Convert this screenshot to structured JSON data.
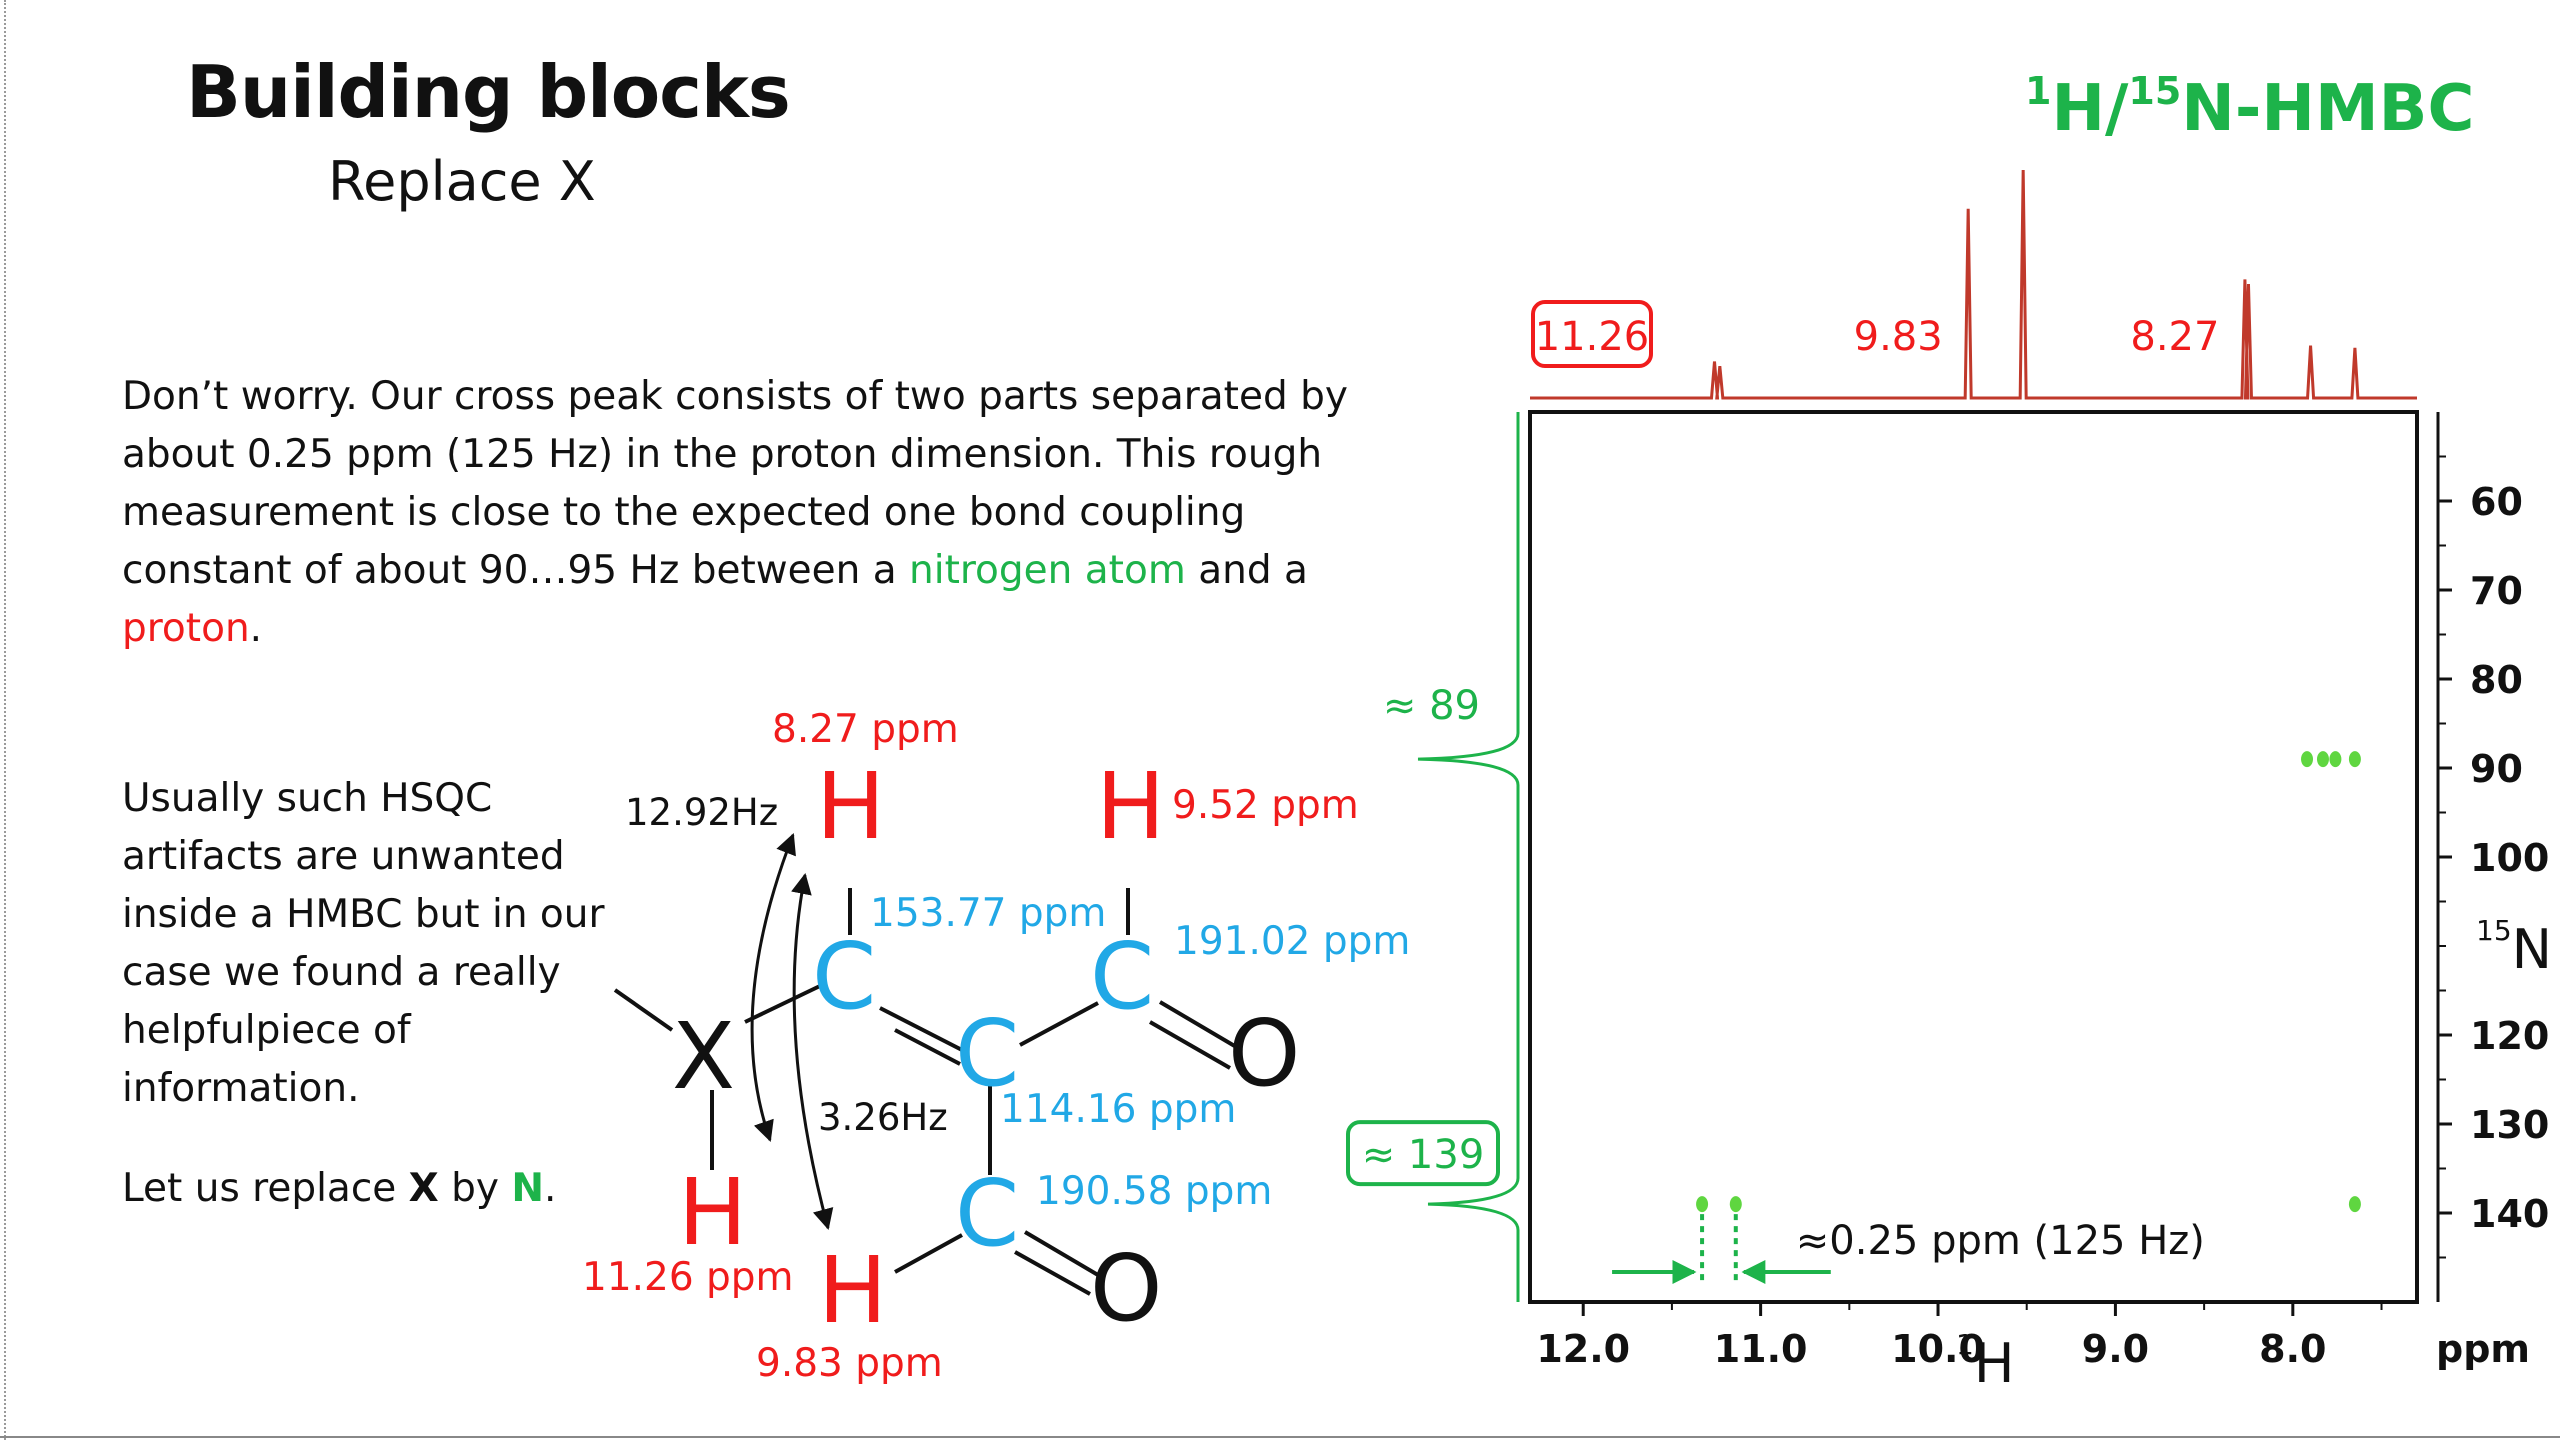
{
  "slide": {
    "title": "Building blocks",
    "subtitle": "Replace X",
    "paragraph1": {
      "part1": "Don’t worry. Our cross peak consists of two parts separated by about 0.25 ppm (125 Hz) in the proton dimension. This rough measurement is close to the expected one bond coupling constant of about 90…95 Hz between a ",
      "nitrogen_atom": "nitrogen atom",
      "part2": " and a ",
      "proton": "proton",
      "part3": "."
    },
    "paragraph2": "Usually such HSQC artifacts are unwanted inside a HMBC but in our case we found a really helpfulpiece of information.",
    "paragraph3": {
      "part1": "Let us replace ",
      "x": "X",
      "part2": " by ",
      "n": "N",
      "part3": "."
    }
  },
  "molecule": {
    "atoms": {
      "X": "X",
      "H": "H",
      "C": "C",
      "O": "O"
    },
    "shifts": {
      "h_top_left": "8.27 ppm",
      "h_top_right": "9.52 ppm",
      "h_bottom_left": "11.26 ppm",
      "h_bottom_right": "9.83 ppm",
      "c_top_left": "153.77 ppm",
      "c_top_right": "191.02 ppm",
      "c_middle": "114.16 ppm",
      "c_bottom": "190.58 ppm"
    },
    "couplings": {
      "long": "12.92Hz",
      "short": "3.26Hz"
    }
  },
  "chart_data": {
    "type": "scatter",
    "title": "1H/15N-HMBC",
    "title_parts": {
      "sup1": "1",
      "h": "H/",
      "sup2": "15",
      "n": "N-HMBC"
    },
    "x_axis": {
      "label_sup": "1",
      "label": "H",
      "unit": "ppm",
      "range": [
        12.3,
        7.3
      ],
      "ticks": [
        12.0,
        11.0,
        10.0,
        9.0,
        8.0
      ],
      "tick_labels": [
        "12.0",
        "11.0",
        "10.0",
        "9.0",
        "8.0"
      ]
    },
    "y_axis": {
      "label_sup": "15",
      "label": "N",
      "range": [
        50,
        150
      ],
      "ticks": [
        60,
        70,
        80,
        90,
        100,
        120,
        130,
        140
      ],
      "tick_labels": [
        "60",
        "70",
        "80",
        "90",
        "100",
        "120",
        "130",
        "140"
      ]
    },
    "points": [
      {
        "x": 7.92,
        "y": 89
      },
      {
        "x": 7.83,
        "y": 89
      },
      {
        "x": 7.76,
        "y": 89
      },
      {
        "x": 7.65,
        "y": 89
      },
      {
        "x": 11.33,
        "y": 139
      },
      {
        "x": 11.14,
        "y": 139
      },
      {
        "x": 7.65,
        "y": 139
      }
    ],
    "top_projection_peaks": [
      {
        "x": 11.26,
        "height": 0.16
      },
      {
        "x": 11.23,
        "height": 0.14
      },
      {
        "x": 9.83,
        "height": 0.83
      },
      {
        "x": 9.52,
        "height": 1.0
      },
      {
        "x": 8.27,
        "height": 0.52
      },
      {
        "x": 8.25,
        "height": 0.5
      },
      {
        "x": 7.9,
        "height": 0.23
      },
      {
        "x": 7.65,
        "height": 0.22
      }
    ],
    "side_projection_peaks": [
      {
        "y": 89,
        "height": 1.0
      },
      {
        "y": 139,
        "height": 0.9
      }
    ],
    "top_peak_labels": [
      {
        "x": 11.26,
        "text": "11.26",
        "boxed": true
      },
      {
        "x": 9.83,
        "text": "9.83",
        "boxed": false
      },
      {
        "x": 8.27,
        "text": "8.27",
        "boxed": false
      }
    ],
    "side_peak_labels": [
      {
        "y": 89,
        "text": "≈ 89",
        "boxed": false
      },
      {
        "y": 139,
        "text": "≈ 139",
        "boxed": true
      }
    ],
    "annotation": {
      "text": "≈0.25 ppm (125 Hz)",
      "x1": 11.33,
      "x2": 11.14,
      "y": 139
    },
    "grid": false,
    "colors": {
      "points": "#5fd640",
      "top_projection": "#c0392b",
      "side_projection": "#1db34a",
      "labels_red": "#f01c1c",
      "labels_green": "#1db34a"
    }
  }
}
